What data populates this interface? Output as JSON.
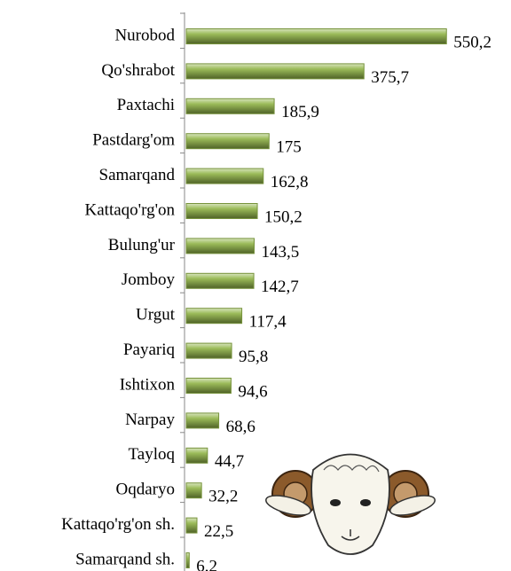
{
  "chart_data": {
    "type": "bar",
    "orientation": "horizontal",
    "categories": [
      "Nurobod",
      "Qo'shrabot",
      "Paxtachi",
      "Pastdarg'om",
      "Samarqand",
      "Kattaqo'rg'on",
      "Bulung'ur",
      "Jomboy",
      "Urgut",
      "Payariq",
      "Ishtixon",
      "Narpay",
      "Tayloq",
      "Oqdaryo",
      "Kattaqo'rg'on sh.",
      "Samarqand sh."
    ],
    "values": [
      550.2,
      375.7,
      185.9,
      175,
      162.8,
      150.2,
      143.5,
      142.7,
      117.4,
      95.8,
      94.6,
      68.6,
      44.7,
      32.2,
      22.5,
      6.2
    ],
    "value_labels": [
      "550,2",
      "375,7",
      "185,9",
      "175",
      "162,8",
      "150,2",
      "143,5",
      "142,7",
      "117,4",
      "95,8",
      "94,6",
      "68,6",
      "44,7",
      "32,2",
      "22,5",
      "6,2"
    ],
    "color": "#77933c"
  }
}
